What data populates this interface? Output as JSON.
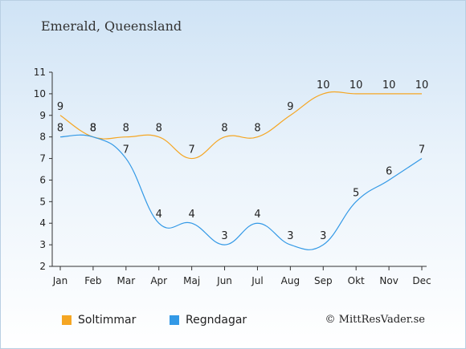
{
  "chart_data": {
    "type": "line",
    "title": "Emerald, Queensland",
    "categories": [
      "Jan",
      "Feb",
      "Mar",
      "Apr",
      "Maj",
      "Jun",
      "Jul",
      "Aug",
      "Sep",
      "Okt",
      "Nov",
      "Dec"
    ],
    "ylim": [
      2,
      11
    ],
    "yticks": [
      2,
      3,
      4,
      5,
      6,
      7,
      8,
      9,
      10,
      11
    ],
    "series": [
      {
        "name": "Soltimmar",
        "color": "#f5a623",
        "values": [
          9,
          8,
          8,
          8,
          7,
          8,
          8,
          9,
          10,
          10,
          10,
          10
        ]
      },
      {
        "name": "Regndagar",
        "color": "#3399e6",
        "values": [
          8,
          8,
          7,
          4,
          4,
          3,
          4,
          3,
          3,
          5,
          6,
          7
        ]
      }
    ],
    "legend_placement": "bottom-left",
    "grid": false
  },
  "copyright": "© MittResVader.se"
}
